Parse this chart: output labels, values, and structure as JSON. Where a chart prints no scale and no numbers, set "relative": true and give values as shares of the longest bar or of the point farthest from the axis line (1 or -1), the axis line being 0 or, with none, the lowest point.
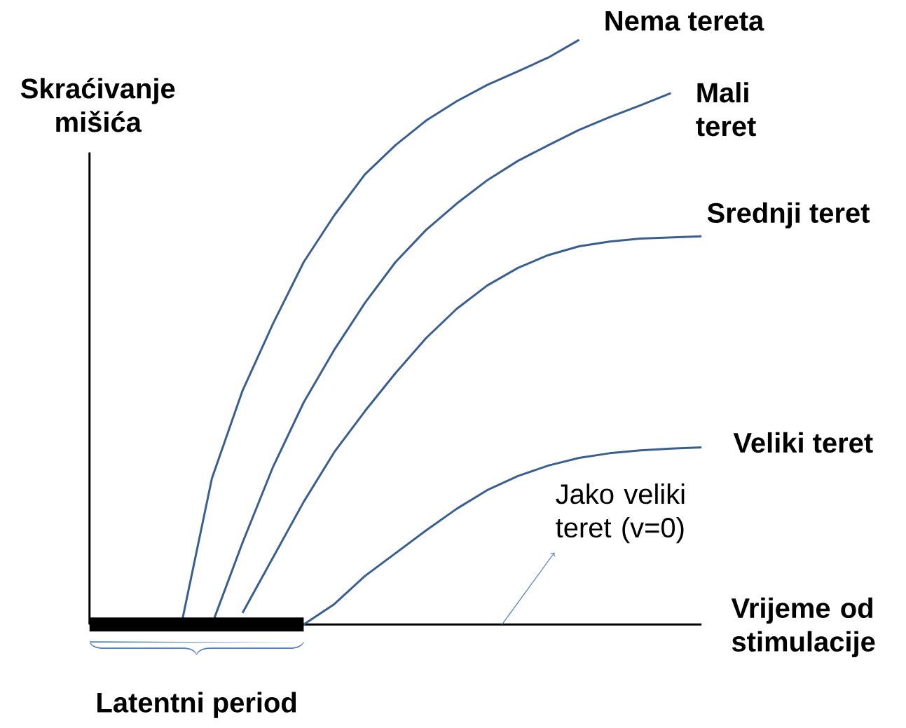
{
  "chart_data": {
    "type": "line",
    "relative": true,
    "xlabel": "Vrijeme od stimulacije",
    "ylabel": "Skraćivanje mišića",
    "categories": [
      null,
      null,
      null,
      null,
      null,
      null,
      null,
      null,
      null,
      null,
      null,
      null,
      null,
      null,
      null,
      null,
      null,
      null,
      null,
      null,
      null
    ],
    "series": [
      {
        "name": "Nema tereta",
        "color": "#3a5f8f",
        "values": [
          null,
          null,
          null,
          0,
          0.25,
          0.4,
          0.515,
          0.62,
          0.7,
          0.77,
          0.82,
          0.862,
          0.895,
          0.923,
          0.946,
          0.97,
          1.0,
          null,
          null,
          null,
          null
        ]
      },
      {
        "name": "Mali teret",
        "color": "#3a5f8f",
        "values": [
          null,
          null,
          null,
          null,
          0,
          0.14,
          0.27,
          0.38,
          0.47,
          0.55,
          0.62,
          0.675,
          0.72,
          0.76,
          0.793,
          0.82,
          0.846,
          0.868,
          0.888,
          0.909,
          null
        ]
      },
      {
        "name": "Srednji teret",
        "color": "#3a5f8f",
        "values": [
          null,
          null,
          null,
          null,
          null,
          0.02,
          0.115,
          0.21,
          0.295,
          0.365,
          0.43,
          0.49,
          0.54,
          0.58,
          0.61,
          0.632,
          0.647,
          0.655,
          0.66,
          0.662,
          0.664
        ]
      },
      {
        "name": "Veliki teret",
        "color": "#3a5f8f",
        "values": [
          null,
          null,
          null,
          null,
          null,
          null,
          null,
          0,
          0.035,
          0.083,
          0.122,
          0.161,
          0.198,
          0.23,
          0.254,
          0.272,
          0.285,
          0.293,
          0.298,
          0.301,
          0.303
        ]
      },
      {
        "color": "#000000",
        "values": [
          0,
          0,
          0,
          0,
          0,
          0,
          0,
          0,
          null,
          null,
          null,
          null,
          null,
          null,
          null,
          null,
          null,
          null,
          null,
          null,
          null
        ]
      }
    ],
    "annotations": [
      "Latentni period",
      "Jako veliki teret (v=0)"
    ]
  }
}
